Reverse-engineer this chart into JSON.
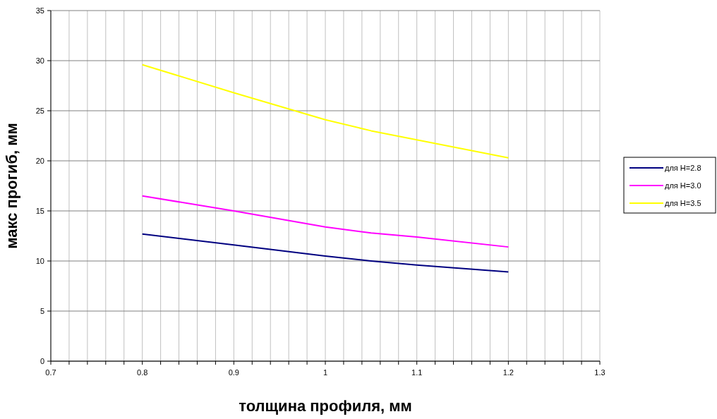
{
  "chart_data": {
    "type": "line",
    "xlabel": "толщина профиля, мм",
    "ylabel": "макс прогиб, мм",
    "x": [
      0.8,
      0.9,
      1.0,
      1.05,
      1.1,
      1.2
    ],
    "series": [
      {
        "name": "для H=2.8",
        "color": "#000080",
        "values": [
          12.7,
          11.6,
          10.5,
          10.0,
          9.6,
          8.9
        ]
      },
      {
        "name": "для H=3.0",
        "color": "#ff00ff",
        "values": [
          16.5,
          15.0,
          13.4,
          12.8,
          12.4,
          11.4
        ]
      },
      {
        "name": "для H=3.5",
        "color": "#ffff00",
        "values": [
          29.6,
          26.8,
          24.1,
          23.0,
          22.1,
          20.3
        ]
      }
    ],
    "xlim": [
      0.7,
      1.3
    ],
    "xticks": [
      0.7,
      {
        "value": 0.72,
        "label": null
      },
      {
        "value": 0.74,
        "label": null
      },
      {
        "value": 0.76,
        "label": null
      },
      {
        "value": 0.78,
        "label": null
      },
      0.8,
      {
        "value": 0.82,
        "label": null
      },
      {
        "value": 0.84,
        "label": null
      },
      {
        "value": 0.86,
        "label": null
      },
      {
        "value": 0.88,
        "label": null
      },
      0.9,
      {
        "value": 0.92,
        "label": null
      },
      {
        "value": 0.94,
        "label": null
      },
      {
        "value": 0.96,
        "label": null
      },
      {
        "value": 0.98,
        "label": null
      },
      1,
      {
        "value": 1.02,
        "label": null
      },
      {
        "value": 1.04,
        "label": null
      },
      {
        "value": 1.06,
        "label": null
      },
      {
        "value": 1.08,
        "label": null
      },
      1.1,
      {
        "value": 1.12,
        "label": null
      },
      {
        "value": 1.14,
        "label": null
      },
      {
        "value": 1.16,
        "label": null
      },
      {
        "value": 1.18,
        "label": null
      },
      1.2,
      {
        "value": 1.22,
        "label": null
      },
      {
        "value": 1.24,
        "label": null
      },
      {
        "value": 1.26,
        "label": null
      },
      {
        "value": 1.28,
        "label": null
      },
      1.3
    ],
    "ylim": [
      0,
      35
    ],
    "yticks": [
      0,
      5,
      10,
      15,
      20,
      25,
      30,
      35
    ],
    "grid": true,
    "legend": "right",
    "marker": "none",
    "line_style": "solid"
  }
}
